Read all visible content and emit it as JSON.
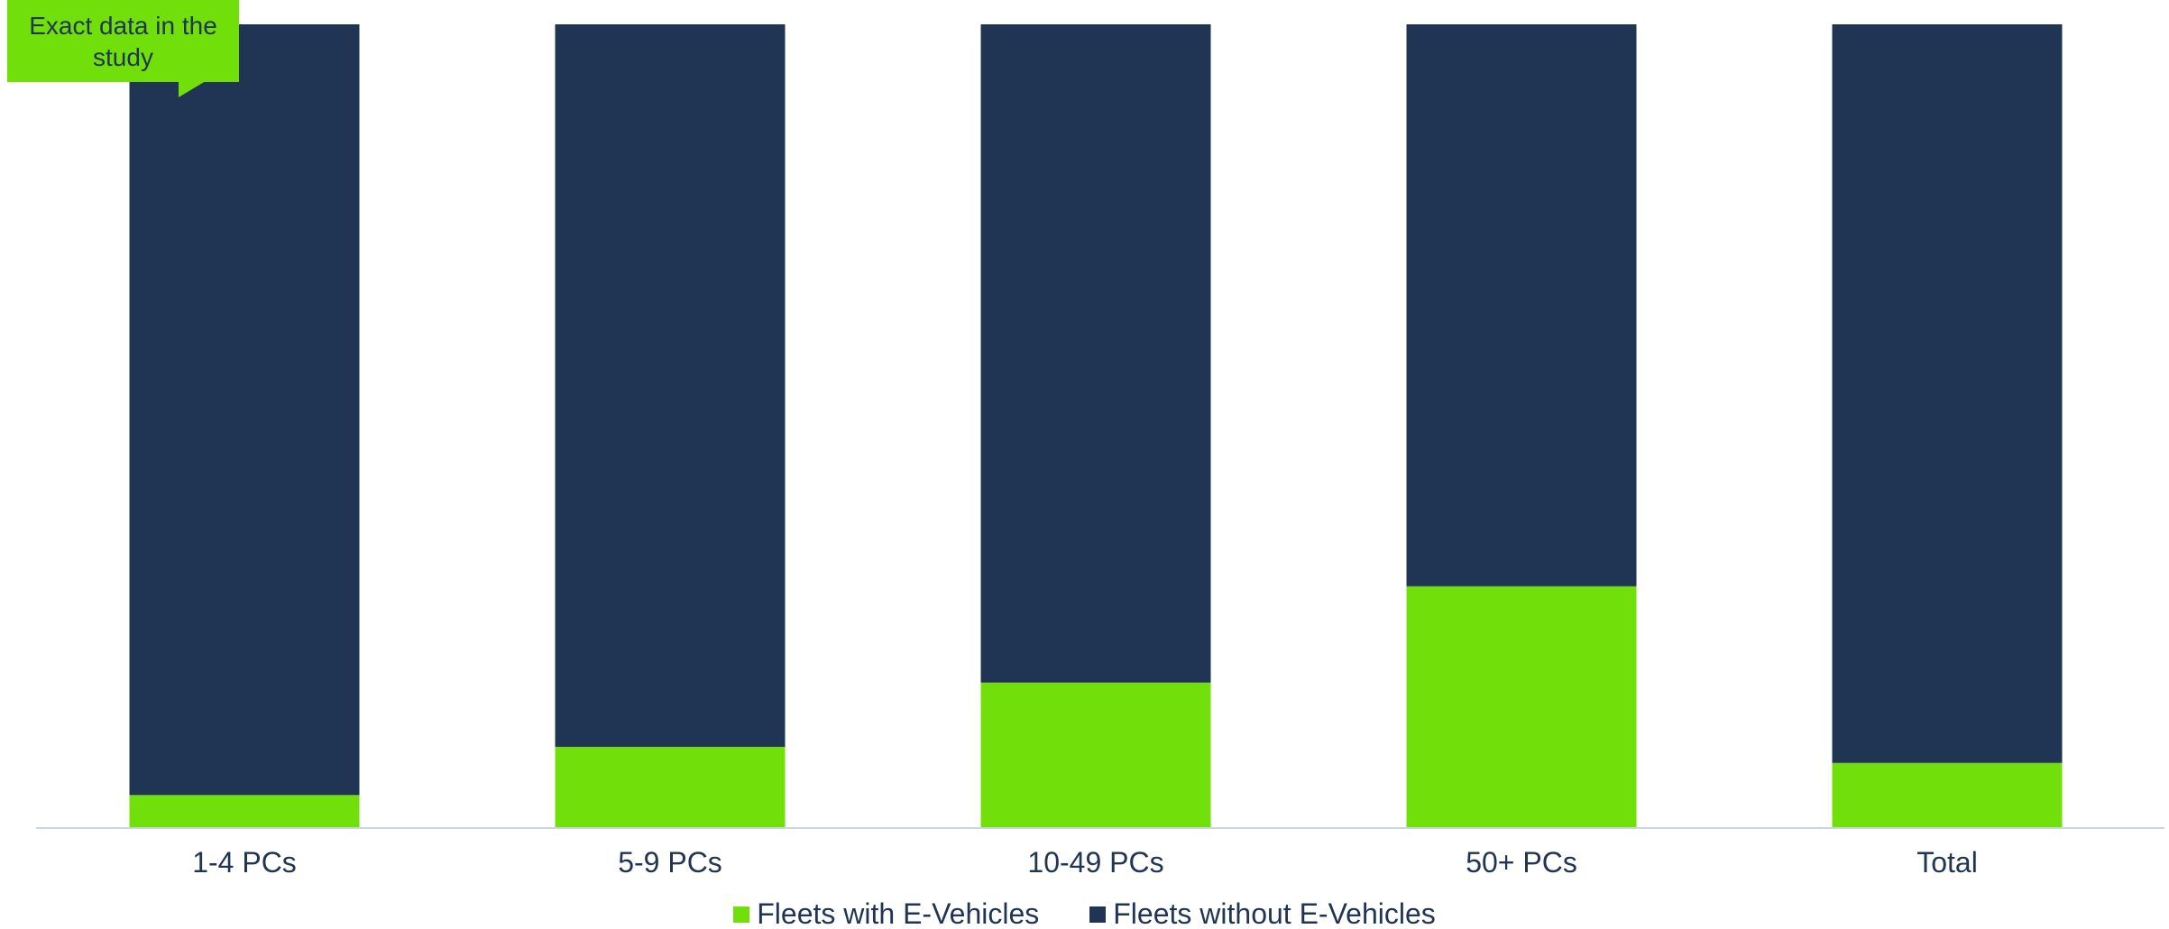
{
  "callout": {
    "text": "Exact data in the study"
  },
  "colors": {
    "with_ev": "#71e00a",
    "without_ev": "#203553",
    "axis_line": "#c7d7e6",
    "text": "#1f3553"
  },
  "legend": {
    "position": "bottom-center",
    "items": [
      {
        "label": "Fleets with E-Vehicles",
        "color": "#71e00a"
      },
      {
        "label": "Fleets without E-Vehicles",
        "color": "#203553"
      }
    ]
  },
  "chart_data": {
    "type": "bar",
    "stacked": true,
    "normalized_100_percent": true,
    "categories": [
      "1-4 PCs",
      "5-9 PCs",
      "10-49 PCs",
      "50+ PCs",
      "Total"
    ],
    "series": [
      {
        "name": "Fleets with E-Vehicles",
        "values": [
          4,
          10,
          18,
          30,
          8
        ]
      },
      {
        "name": "Fleets without E-Vehicles",
        "values": [
          96,
          90,
          82,
          70,
          92
        ]
      }
    ],
    "ylim": [
      0,
      100
    ],
    "grid": false,
    "title": "",
    "xlabel": "",
    "ylabel": ""
  }
}
